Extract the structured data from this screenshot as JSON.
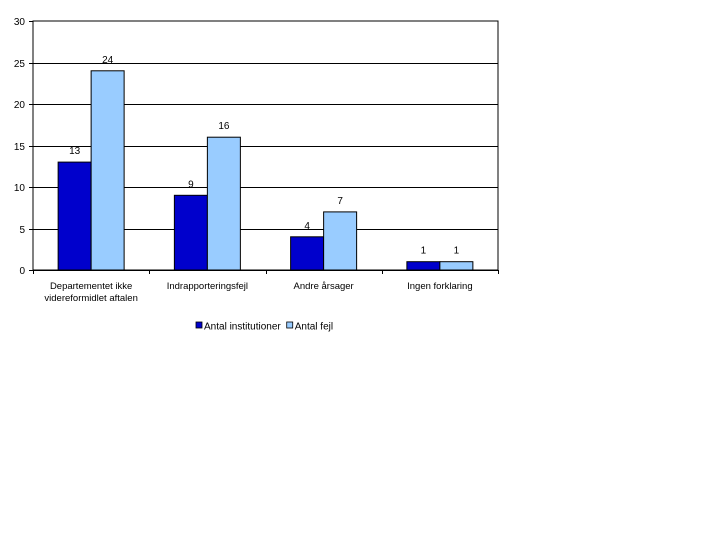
{
  "chart_data": {
    "type": "bar",
    "title": "",
    "xlabel": "",
    "ylabel": "",
    "categories": [
      [
        "Departementet ikke",
        "videreformidlet aftalen"
      ],
      [
        "Indrapporteringsfejl"
      ],
      [
        "Andre årsager"
      ],
      [
        "Ingen forklaring"
      ]
    ],
    "series": [
      {
        "name": "Antal institutioner",
        "values": [
          13,
          9,
          4,
          1
        ],
        "color": "#0000cc"
      },
      {
        "name": "Antal fejl",
        "values": [
          24,
          16,
          7,
          1
        ],
        "color": "#99ccff"
      }
    ],
    "ylim": [
      0,
      30
    ],
    "yticks": [
      0,
      5,
      10,
      15,
      20,
      25,
      30
    ],
    "grid": true,
    "legend_position": "bottom",
    "data_labels": true
  }
}
